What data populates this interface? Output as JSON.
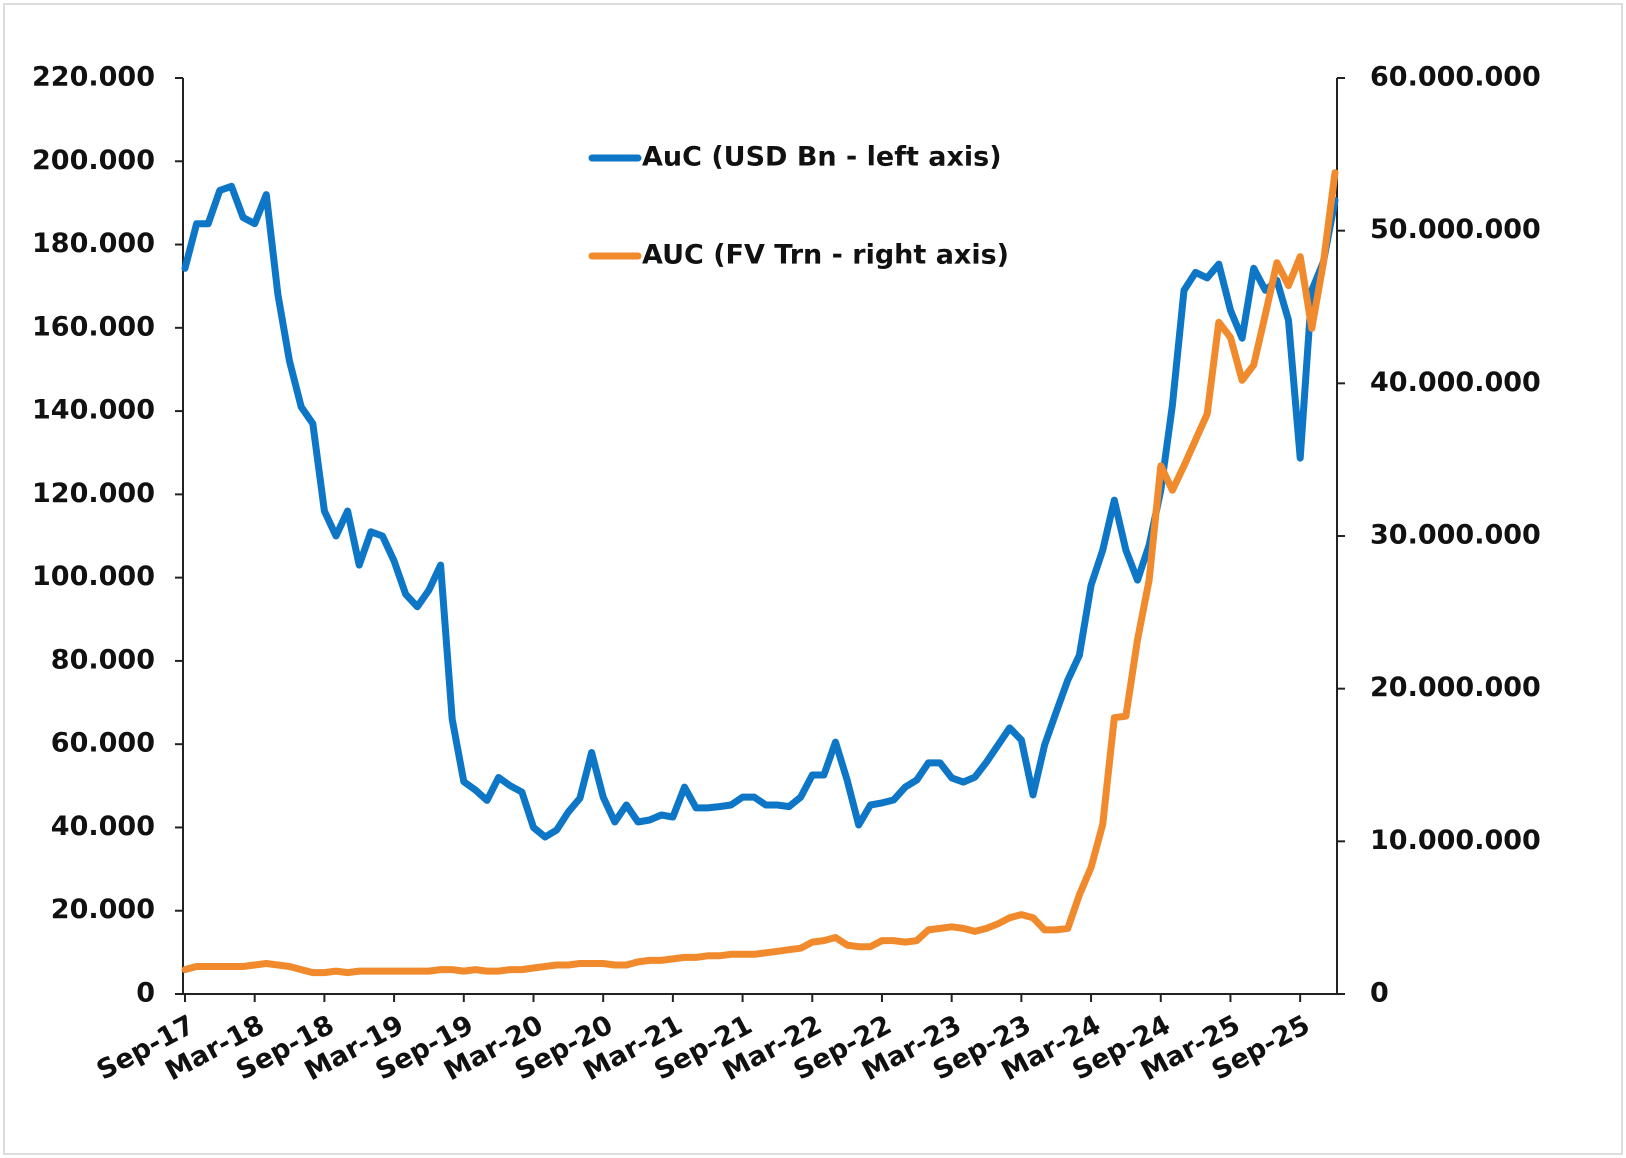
{
  "chart_data": {
    "type": "line",
    "categories": [
      "Sep-17",
      null,
      null,
      null,
      null,
      null,
      "Mar-18",
      null,
      null,
      null,
      null,
      null,
      "Sep-18",
      null,
      null,
      null,
      null,
      null,
      "Mar-19",
      null,
      null,
      null,
      null,
      null,
      "Sep-19",
      null,
      null,
      null,
      null,
      null,
      "Mar-20",
      null,
      null,
      null,
      null,
      null,
      "Sep-20",
      null,
      null,
      null,
      null,
      null,
      "Mar-21",
      null,
      null,
      null,
      null,
      null,
      "Sep-21",
      null,
      null,
      null,
      null,
      null,
      "Mar-22",
      null,
      null,
      null,
      null,
      null,
      "Sep-22",
      null,
      null,
      null,
      null,
      null,
      "Mar-23",
      null,
      null,
      null,
      null,
      null,
      "Sep-23",
      null,
      null,
      null,
      null,
      null,
      "Mar-24",
      null,
      null,
      null,
      null,
      null,
      "Sep-24",
      null,
      null,
      null,
      null,
      null,
      "Mar-25",
      null,
      null,
      null,
      null,
      null,
      "Sep-25",
      null,
      null,
      null
    ],
    "series": [
      {
        "name": "AuC (USD Bn - left axis)",
        "color": "#0e76c6",
        "axis": "y",
        "values": [
          174300,
          185000,
          185000,
          193000,
          194000,
          186500,
          185000,
          192000,
          168000,
          152000,
          141000,
          137000,
          116000,
          110000,
          116000,
          103000,
          111000,
          110000,
          104000,
          96000,
          93000,
          97000,
          103000,
          66000,
          51000,
          49000,
          46500,
          52000,
          50000,
          48500,
          40000,
          37700,
          39400,
          43700,
          47000,
          58000,
          47300,
          41300,
          45400,
          41300,
          41800,
          43000,
          42500,
          49700,
          44700,
          44700,
          45000,
          45400,
          47300,
          47300,
          45400,
          45400,
          45000,
          47300,
          52600,
          52600,
          60500,
          51400,
          40600,
          45400,
          45900,
          46600,
          49700,
          51400,
          55500,
          55500,
          51900,
          50900,
          52100,
          55700,
          59800,
          63900,
          61000,
          47800,
          59800,
          67700,
          75400,
          81400,
          98200,
          106600,
          118600,
          106600,
          99400,
          107800,
          121000,
          141400,
          169000,
          173300,
          172000,
          175300,
          164200,
          157500,
          174300,
          169000,
          171400,
          161800,
          128700,
          169000,
          175800,
          190600
        ]
      },
      {
        "name": "AUC (FV Trn - right axis)",
        "color": "#f08a2c",
        "axis": "y2",
        "values": [
          1600000,
          1800000,
          1800000,
          1800000,
          1800000,
          1800000,
          1900000,
          2000000,
          1900000,
          1800000,
          1600000,
          1400000,
          1400000,
          1500000,
          1400000,
          1500000,
          1500000,
          1500000,
          1500000,
          1500000,
          1500000,
          1500000,
          1600000,
          1600000,
          1500000,
          1600000,
          1500000,
          1500000,
          1600000,
          1600000,
          1700000,
          1800000,
          1900000,
          1900000,
          2000000,
          2000000,
          2000000,
          1900000,
          1900000,
          2100000,
          2200000,
          2200000,
          2300000,
          2400000,
          2400000,
          2500000,
          2500000,
          2600000,
          2600000,
          2600000,
          2700000,
          2800000,
          2900000,
          3000000,
          3400000,
          3500000,
          3700000,
          3200000,
          3100000,
          3100000,
          3500000,
          3500000,
          3400000,
          3500000,
          4200000,
          4300000,
          4400000,
          4300000,
          4100000,
          4300000,
          4600000,
          5000000,
          5200000,
          5000000,
          4200000,
          4200000,
          4300000,
          6500000,
          8300000,
          11100000,
          18100000,
          18200000,
          23200000,
          27100000,
          34600000,
          33000000,
          34600000,
          36300000,
          38000000,
          44000000,
          43000000,
          40200000,
          41200000,
          44500000,
          47900000,
          46400000,
          48300000,
          43600000,
          47900000,
          53800000
        ]
      }
    ],
    "ylim": [
      0,
      220000
    ],
    "yticks": [
      {
        "value": 0,
        "label": "0"
      },
      {
        "value": 20000,
        "label": "20.000"
      },
      {
        "value": 40000,
        "label": "40.000"
      },
      {
        "value": 60000,
        "label": "60.000"
      },
      {
        "value": 80000,
        "label": "80.000"
      },
      {
        "value": 100000,
        "label": "100.000"
      },
      {
        "value": 120000,
        "label": "120.000"
      },
      {
        "value": 140000,
        "label": "140.000"
      },
      {
        "value": 160000,
        "label": "160.000"
      },
      {
        "value": 180000,
        "label": "180.000"
      },
      {
        "value": 200000,
        "label": "200.000"
      },
      {
        "value": 220000,
        "label": "220.000"
      }
    ],
    "y2lim": [
      0,
      60000000
    ],
    "y2ticks": [
      {
        "value": 0,
        "label": "0"
      },
      {
        "value": 10000000,
        "label": "10.000.000"
      },
      {
        "value": 20000000,
        "label": "20.000.000"
      },
      {
        "value": 30000000,
        "label": "30.000.000"
      },
      {
        "value": 40000000,
        "label": "40.000.000"
      },
      {
        "value": 50000000,
        "label": "50.000.000"
      },
      {
        "value": 60000000,
        "label": "60.000.000"
      }
    ],
    "grid": false,
    "legend": "top"
  }
}
